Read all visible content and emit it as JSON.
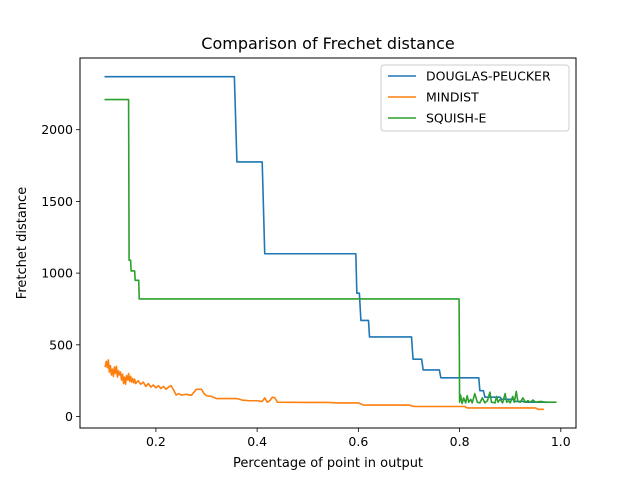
{
  "chart_data": {
    "type": "line",
    "title": "Comparison of Frechet distance",
    "xlabel": "Percentage of point in output",
    "ylabel": "Fretchet distance",
    "xlim": [
      0.05,
      1.03
    ],
    "ylim": [
      -80,
      2500
    ],
    "x_ticks": [
      0.2,
      0.4,
      0.6,
      0.8,
      1.0
    ],
    "x_tick_labels": [
      "0.2",
      "0.4",
      "0.6",
      "0.8",
      "1.0"
    ],
    "y_ticks": [
      0,
      500,
      1000,
      1500,
      2000
    ],
    "y_tick_labels": [
      "0",
      "500",
      "1000",
      "1500",
      "2000"
    ],
    "grid": false,
    "legend_position": "top-right",
    "series": [
      {
        "name": "DOUGLAS-PEUCKER",
        "color": "#1f77b4",
        "points": [
          [
            0.1,
            2370
          ],
          [
            0.355,
            2370
          ],
          [
            0.36,
            1775
          ],
          [
            0.41,
            1775
          ],
          [
            0.415,
            1135
          ],
          [
            0.595,
            1135
          ],
          [
            0.597,
            860
          ],
          [
            0.602,
            860
          ],
          [
            0.605,
            670
          ],
          [
            0.62,
            670
          ],
          [
            0.622,
            555
          ],
          [
            0.705,
            555
          ],
          [
            0.708,
            400
          ],
          [
            0.725,
            400
          ],
          [
            0.728,
            325
          ],
          [
            0.76,
            325
          ],
          [
            0.763,
            270
          ],
          [
            0.838,
            270
          ],
          [
            0.84,
            180
          ],
          [
            0.847,
            180
          ],
          [
            0.85,
            135
          ],
          [
            0.88,
            135
          ],
          [
            0.883,
            120
          ],
          [
            0.905,
            120
          ],
          [
            0.91,
            105
          ],
          [
            0.925,
            105
          ],
          [
            0.93,
            100
          ],
          [
            0.97,
            100
          ]
        ]
      },
      {
        "name": "MINDIST",
        "color": "#ff7f0e",
        "points": [
          [
            0.1,
            350
          ],
          [
            0.102,
            385
          ],
          [
            0.104,
            340
          ],
          [
            0.106,
            395
          ],
          [
            0.108,
            310
          ],
          [
            0.11,
            355
          ],
          [
            0.112,
            290
          ],
          [
            0.114,
            330
          ],
          [
            0.116,
            280
          ],
          [
            0.118,
            345
          ],
          [
            0.12,
            300
          ],
          [
            0.122,
            350
          ],
          [
            0.124,
            275
          ],
          [
            0.126,
            320
          ],
          [
            0.128,
            290
          ],
          [
            0.13,
            310
          ],
          [
            0.132,
            255
          ],
          [
            0.134,
            295
          ],
          [
            0.136,
            230
          ],
          [
            0.138,
            275
          ],
          [
            0.14,
            225
          ],
          [
            0.142,
            285
          ],
          [
            0.144,
            255
          ],
          [
            0.146,
            300
          ],
          [
            0.148,
            245
          ],
          [
            0.15,
            280
          ],
          [
            0.152,
            240
          ],
          [
            0.154,
            265
          ],
          [
            0.156,
            235
          ],
          [
            0.158,
            260
          ],
          [
            0.16,
            230
          ],
          [
            0.165,
            250
          ],
          [
            0.17,
            225
          ],
          [
            0.175,
            240
          ],
          [
            0.18,
            210
          ],
          [
            0.185,
            230
          ],
          [
            0.19,
            205
          ],
          [
            0.195,
            220
          ],
          [
            0.2,
            200
          ],
          [
            0.205,
            215
          ],
          [
            0.21,
            195
          ],
          [
            0.215,
            210
          ],
          [
            0.22,
            190
          ],
          [
            0.225,
            205
          ],
          [
            0.23,
            215
          ],
          [
            0.235,
            185
          ],
          [
            0.24,
            150
          ],
          [
            0.245,
            160
          ],
          [
            0.25,
            150
          ],
          [
            0.26,
            155
          ],
          [
            0.27,
            148
          ],
          [
            0.28,
            190
          ],
          [
            0.29,
            190
          ],
          [
            0.295,
            160
          ],
          [
            0.3,
            145
          ],
          [
            0.31,
            140
          ],
          [
            0.32,
            125
          ],
          [
            0.34,
            125
          ],
          [
            0.36,
            125
          ],
          [
            0.37,
            115
          ],
          [
            0.385,
            110
          ],
          [
            0.4,
            110
          ],
          [
            0.41,
            105
          ],
          [
            0.415,
            130
          ],
          [
            0.42,
            100
          ],
          [
            0.425,
            110
          ],
          [
            0.43,
            135
          ],
          [
            0.435,
            130
          ],
          [
            0.44,
            100
          ],
          [
            0.5,
            98
          ],
          [
            0.54,
            98
          ],
          [
            0.56,
            95
          ],
          [
            0.6,
            95
          ],
          [
            0.61,
            80
          ],
          [
            0.7,
            80
          ],
          [
            0.71,
            70
          ],
          [
            0.81,
            70
          ],
          [
            0.815,
            60
          ],
          [
            0.95,
            60
          ],
          [
            0.955,
            50
          ],
          [
            0.965,
            50
          ]
        ]
      },
      {
        "name": "SQUISH-E",
        "color": "#2ca02c",
        "points": [
          [
            0.1,
            2210
          ],
          [
            0.146,
            2210
          ],
          [
            0.147,
            1090
          ],
          [
            0.15,
            1090
          ],
          [
            0.151,
            1015
          ],
          [
            0.158,
            1015
          ],
          [
            0.159,
            950
          ],
          [
            0.166,
            950
          ],
          [
            0.167,
            820
          ],
          [
            0.799,
            820
          ],
          [
            0.8,
            100
          ],
          [
            0.802,
            150
          ],
          [
            0.805,
            90
          ],
          [
            0.808,
            130
          ],
          [
            0.812,
            95
          ],
          [
            0.815,
            145
          ],
          [
            0.818,
            100
          ],
          [
            0.822,
            120
          ],
          [
            0.825,
            95
          ],
          [
            0.83,
            160
          ],
          [
            0.835,
            100
          ],
          [
            0.84,
            95
          ],
          [
            0.845,
            130
          ],
          [
            0.85,
            95
          ],
          [
            0.855,
            110
          ],
          [
            0.86,
            170
          ],
          [
            0.863,
            100
          ],
          [
            0.87,
            95
          ],
          [
            0.873,
            140
          ],
          [
            0.876,
            100
          ],
          [
            0.88,
            120
          ],
          [
            0.885,
            95
          ],
          [
            0.89,
            160
          ],
          [
            0.893,
            100
          ],
          [
            0.897,
            110
          ],
          [
            0.9,
            95
          ],
          [
            0.905,
            140
          ],
          [
            0.908,
            100
          ],
          [
            0.912,
            175
          ],
          [
            0.915,
            105
          ],
          [
            0.92,
            100
          ],
          [
            0.925,
            130
          ],
          [
            0.93,
            100
          ],
          [
            0.935,
            110
          ],
          [
            0.94,
            100
          ],
          [
            0.945,
            115
          ],
          [
            0.95,
            100
          ],
          [
            0.96,
            105
          ],
          [
            0.97,
            100
          ],
          [
            0.99,
            100
          ]
        ]
      }
    ]
  }
}
